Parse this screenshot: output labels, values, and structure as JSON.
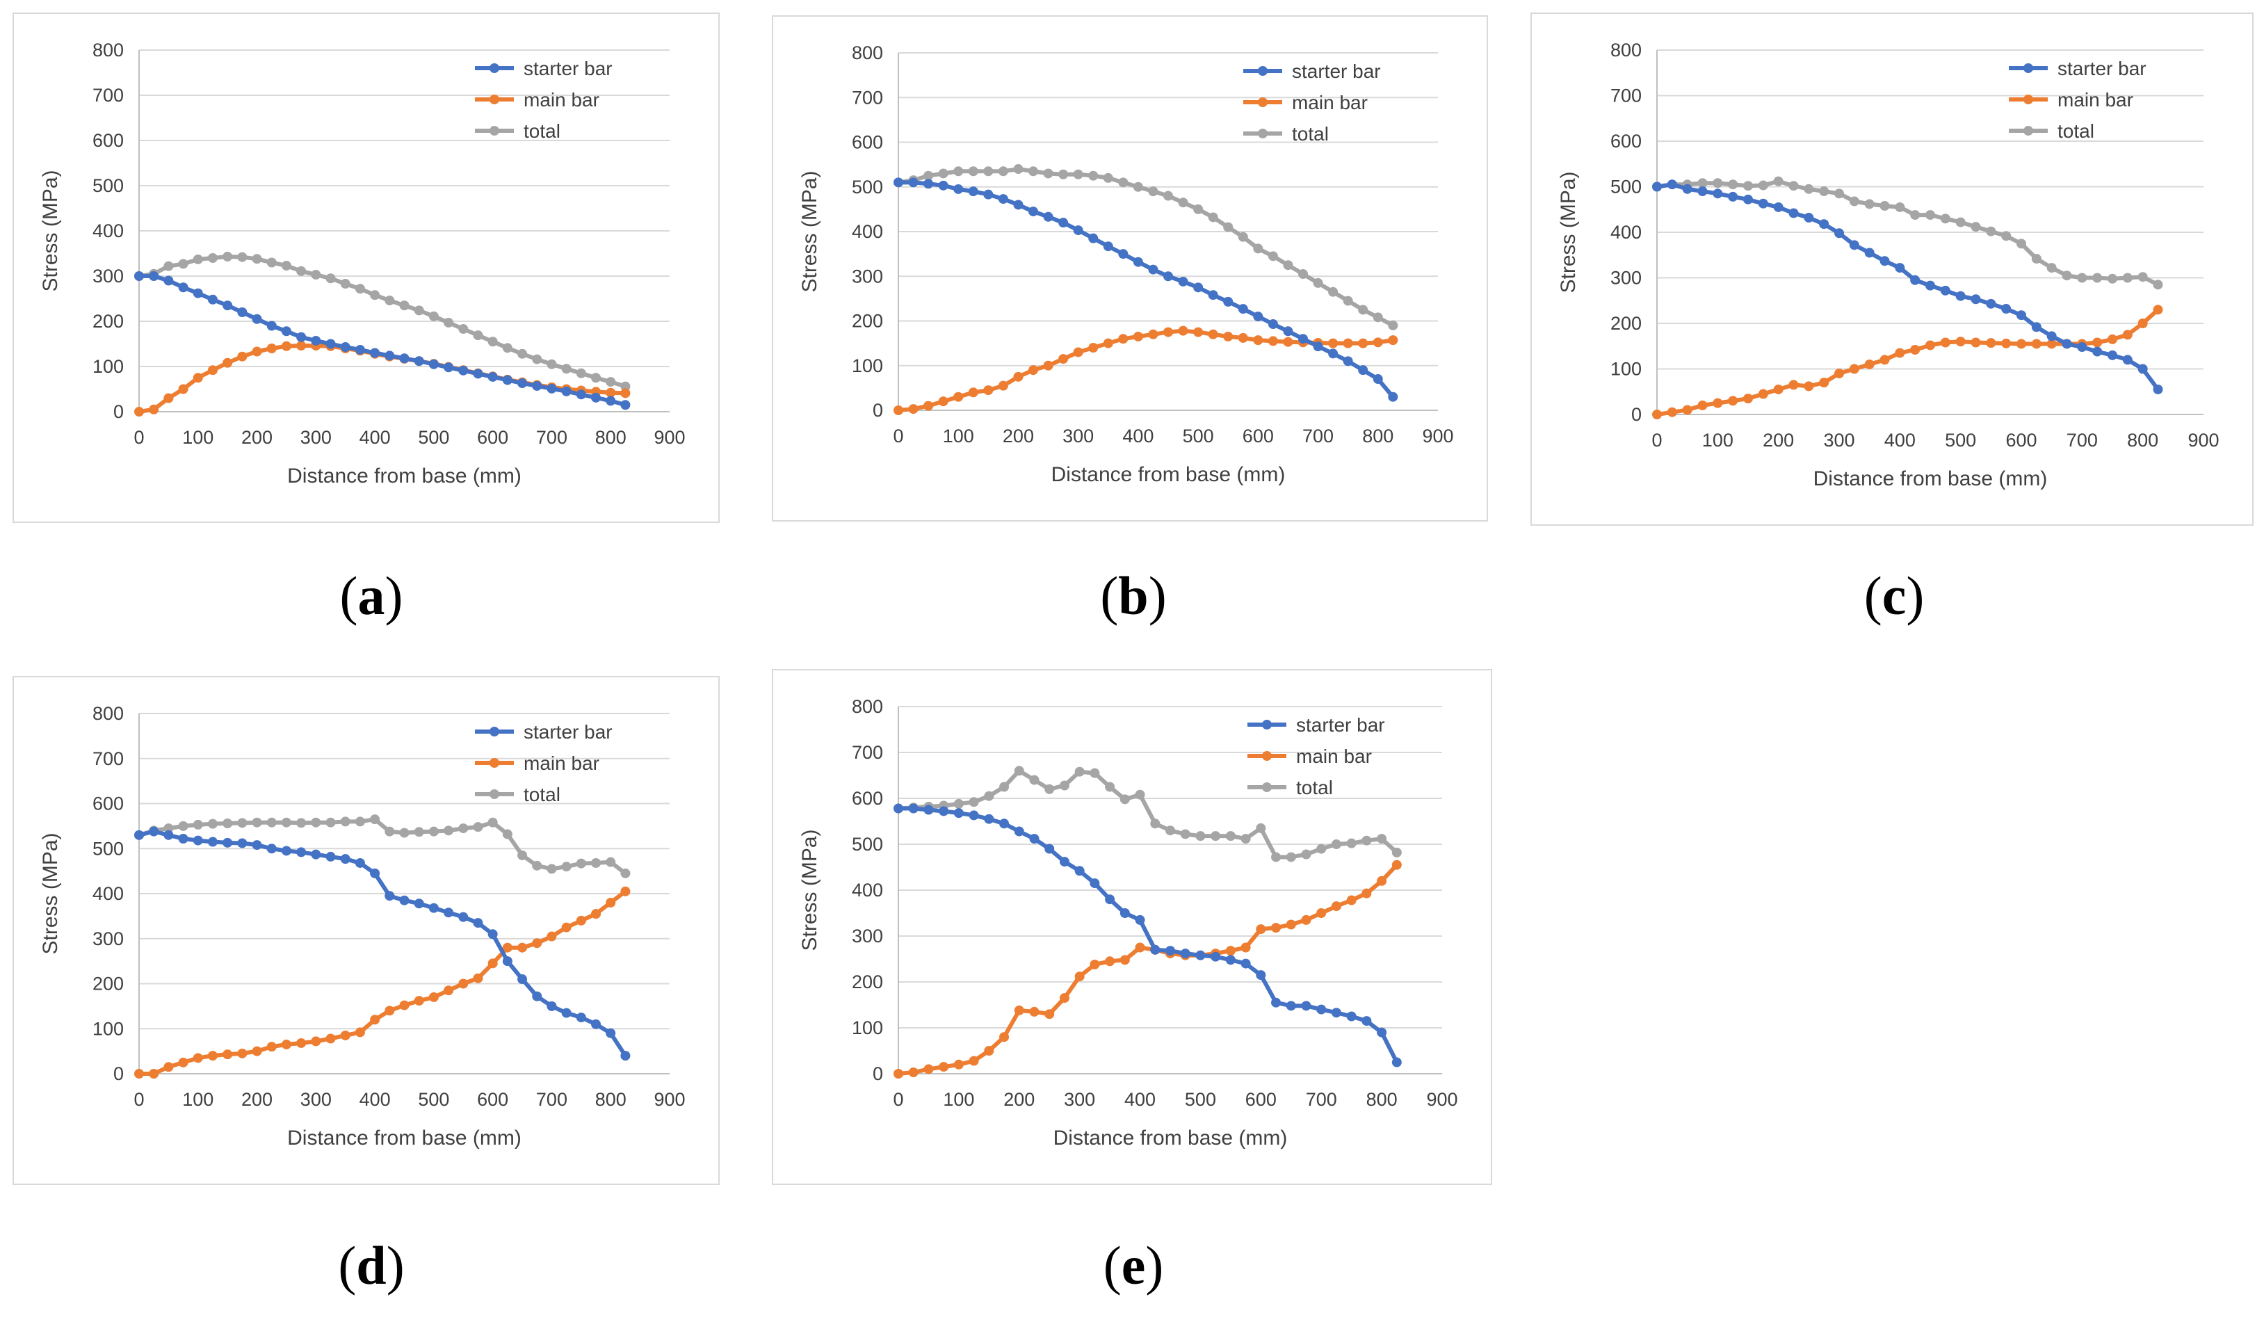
{
  "figure": {
    "captions": [
      "(a)",
      "(b)",
      "(c)",
      "(d)",
      "(e)"
    ]
  },
  "colors": {
    "starter": "#4472C4",
    "main": "#ED7D31",
    "total": "#A5A5A5",
    "grid": "#d9d9d9",
    "axis": "#bfbfbf",
    "text": "#404040"
  },
  "chart_data": [
    {
      "id": "a",
      "type": "line",
      "xlabel": "Distance from base (mm)",
      "ylabel": "Stress (MPa)",
      "xlim": [
        0,
        900
      ],
      "ylim": [
        0,
        800
      ],
      "xticks": [
        0,
        100,
        200,
        300,
        400,
        500,
        600,
        700,
        800,
        900
      ],
      "yticks": [
        0,
        100,
        200,
        300,
        400,
        500,
        600,
        700,
        800
      ],
      "legend": [
        "starter bar",
        "main bar",
        "total"
      ],
      "x": [
        0,
        25,
        50,
        75,
        100,
        125,
        150,
        175,
        200,
        225,
        250,
        275,
        300,
        325,
        350,
        375,
        400,
        425,
        450,
        475,
        500,
        525,
        550,
        575,
        600,
        625,
        650,
        675,
        700,
        725,
        750,
        775,
        800,
        825
      ],
      "series": [
        {
          "name": "starter bar",
          "values": [
            300,
            300,
            290,
            275,
            262,
            248,
            235,
            220,
            205,
            190,
            178,
            165,
            157,
            150,
            143,
            137,
            130,
            124,
            118,
            112,
            105,
            98,
            91,
            84,
            77,
            70,
            63,
            57,
            51,
            45,
            38,
            31,
            24,
            15
          ]
        },
        {
          "name": "main bar",
          "values": [
            0,
            5,
            30,
            50,
            75,
            92,
            108,
            122,
            133,
            140,
            145,
            146,
            146,
            145,
            140,
            135,
            128,
            122,
            117,
            112,
            106,
            99,
            92,
            85,
            78,
            71,
            65,
            59,
            54,
            50,
            47,
            44,
            42,
            41
          ]
        },
        {
          "name": "total",
          "values": [
            300,
            305,
            322,
            327,
            337,
            340,
            343,
            342,
            338,
            330,
            323,
            311,
            303,
            295,
            283,
            272,
            258,
            246,
            235,
            224,
            211,
            197,
            183,
            169,
            155,
            141,
            128,
            116,
            105,
            95,
            85,
            75,
            66,
            56
          ]
        }
      ]
    },
    {
      "id": "b",
      "type": "line",
      "xlabel": "Distance from base (mm)",
      "ylabel": "Stress (MPa)",
      "xlim": [
        0,
        900
      ],
      "ylim": [
        0,
        800
      ],
      "xticks": [
        0,
        100,
        200,
        300,
        400,
        500,
        600,
        700,
        800,
        900
      ],
      "yticks": [
        0,
        100,
        200,
        300,
        400,
        500,
        600,
        700,
        800
      ],
      "legend": [
        "starter bar",
        "main bar",
        "total"
      ],
      "x": [
        0,
        25,
        50,
        75,
        100,
        125,
        150,
        175,
        200,
        225,
        250,
        275,
        300,
        325,
        350,
        375,
        400,
        425,
        450,
        475,
        500,
        525,
        550,
        575,
        600,
        625,
        650,
        675,
        700,
        725,
        750,
        775,
        800,
        825
      ],
      "series": [
        {
          "name": "starter bar",
          "values": [
            510,
            510,
            507,
            503,
            495,
            490,
            483,
            473,
            460,
            445,
            433,
            420,
            403,
            385,
            367,
            350,
            332,
            315,
            300,
            288,
            275,
            258,
            243,
            227,
            210,
            193,
            177,
            160,
            143,
            127,
            110,
            90,
            70,
            30
          ]
        },
        {
          "name": "main bar",
          "values": [
            0,
            3,
            10,
            20,
            30,
            40,
            45,
            55,
            75,
            90,
            100,
            115,
            130,
            140,
            150,
            160,
            165,
            170,
            175,
            178,
            175,
            170,
            165,
            162,
            157,
            155,
            153,
            152,
            151,
            150,
            150,
            150,
            152,
            157
          ]
        },
        {
          "name": "total",
          "values": [
            510,
            515,
            525,
            530,
            535,
            535,
            535,
            535,
            540,
            535,
            530,
            528,
            528,
            525,
            520,
            510,
            500,
            490,
            480,
            465,
            450,
            432,
            410,
            388,
            362,
            345,
            325,
            305,
            285,
            265,
            245,
            225,
            208,
            190
          ]
        }
      ]
    },
    {
      "id": "c",
      "type": "line",
      "xlabel": "Distance from base (mm)",
      "ylabel": "Stress (MPa)",
      "xlim": [
        0,
        900
      ],
      "ylim": [
        0,
        800
      ],
      "xticks": [
        0,
        100,
        200,
        300,
        400,
        500,
        600,
        700,
        800,
        900
      ],
      "yticks": [
        0,
        100,
        200,
        300,
        400,
        500,
        600,
        700,
        800
      ],
      "legend": [
        "starter bar",
        "main bar",
        "total"
      ],
      "x": [
        0,
        25,
        50,
        75,
        100,
        125,
        150,
        175,
        200,
        225,
        250,
        275,
        300,
        325,
        350,
        375,
        400,
        425,
        450,
        475,
        500,
        525,
        550,
        575,
        600,
        625,
        650,
        675,
        700,
        725,
        750,
        775,
        800,
        825
      ],
      "series": [
        {
          "name": "starter bar",
          "values": [
            500,
            505,
            495,
            490,
            485,
            478,
            472,
            463,
            455,
            442,
            432,
            418,
            398,
            372,
            355,
            337,
            322,
            295,
            283,
            272,
            260,
            253,
            243,
            232,
            218,
            192,
            172,
            155,
            148,
            138,
            130,
            120,
            100,
            55
          ]
        },
        {
          "name": "main bar",
          "values": [
            0,
            5,
            10,
            20,
            25,
            30,
            35,
            45,
            55,
            65,
            62,
            70,
            90,
            100,
            110,
            120,
            135,
            142,
            152,
            158,
            160,
            158,
            157,
            156,
            155,
            155,
            155,
            155,
            155,
            158,
            165,
            175,
            200,
            230
          ]
        },
        {
          "name": "total",
          "values": [
            500,
            505,
            505,
            508,
            508,
            505,
            502,
            503,
            512,
            502,
            495,
            490,
            485,
            468,
            462,
            458,
            455,
            438,
            438,
            430,
            422,
            412,
            402,
            392,
            375,
            342,
            322,
            305,
            300,
            300,
            298,
            300,
            302,
            285
          ]
        }
      ]
    },
    {
      "id": "d",
      "type": "line",
      "xlabel": "Distance from base (mm)",
      "ylabel": "Stress (MPa)",
      "xlim": [
        0,
        900
      ],
      "ylim": [
        0,
        800
      ],
      "xticks": [
        0,
        100,
        200,
        300,
        400,
        500,
        600,
        700,
        800,
        900
      ],
      "yticks": [
        0,
        100,
        200,
        300,
        400,
        500,
        600,
        700,
        800
      ],
      "legend": [
        "starter bar",
        "main bar",
        "total"
      ],
      "x": [
        0,
        25,
        50,
        75,
        100,
        125,
        150,
        175,
        200,
        225,
        250,
        275,
        300,
        325,
        350,
        375,
        400,
        425,
        450,
        475,
        500,
        525,
        550,
        575,
        600,
        625,
        650,
        675,
        700,
        725,
        750,
        775,
        800,
        825
      ],
      "series": [
        {
          "name": "starter bar",
          "values": [
            530,
            538,
            530,
            522,
            518,
            515,
            513,
            512,
            508,
            500,
            495,
            492,
            487,
            482,
            477,
            468,
            445,
            395,
            385,
            378,
            368,
            358,
            348,
            335,
            310,
            250,
            210,
            172,
            150,
            135,
            125,
            110,
            90,
            40
          ]
        },
        {
          "name": "main bar",
          "values": [
            0,
            0,
            15,
            25,
            35,
            40,
            43,
            45,
            50,
            60,
            65,
            68,
            72,
            78,
            85,
            92,
            120,
            140,
            152,
            162,
            170,
            185,
            200,
            212,
            245,
            280,
            280,
            290,
            305,
            325,
            340,
            355,
            380,
            405
          ]
        },
        {
          "name": "total",
          "values": [
            530,
            540,
            545,
            550,
            553,
            555,
            556,
            557,
            558,
            558,
            558,
            557,
            558,
            558,
            560,
            560,
            565,
            538,
            535,
            537,
            538,
            540,
            545,
            548,
            558,
            532,
            485,
            462,
            455,
            460,
            467,
            468,
            470,
            445
          ]
        }
      ]
    },
    {
      "id": "e",
      "type": "line",
      "xlabel": "Distance from base (mm)",
      "ylabel": "Stress (MPa)",
      "xlim": [
        0,
        900
      ],
      "ylim": [
        0,
        800
      ],
      "xticks": [
        0,
        100,
        200,
        300,
        400,
        500,
        600,
        700,
        800,
        900
      ],
      "yticks": [
        0,
        100,
        200,
        300,
        400,
        500,
        600,
        700,
        800
      ],
      "legend": [
        "starter bar",
        "main bar",
        "total"
      ],
      "x": [
        0,
        25,
        50,
        75,
        100,
        125,
        150,
        175,
        200,
        225,
        250,
        275,
        300,
        325,
        350,
        375,
        400,
        425,
        450,
        475,
        500,
        525,
        550,
        575,
        600,
        625,
        650,
        675,
        700,
        725,
        750,
        775,
        800,
        825
      ],
      "series": [
        {
          "name": "starter bar",
          "values": [
            578,
            578,
            575,
            572,
            568,
            563,
            555,
            545,
            528,
            512,
            490,
            462,
            442,
            415,
            380,
            350,
            335,
            270,
            268,
            262,
            258,
            255,
            248,
            240,
            215,
            155,
            148,
            148,
            140,
            133,
            125,
            115,
            90,
            25
          ]
        },
        {
          "name": "main bar",
          "values": [
            0,
            3,
            10,
            15,
            20,
            28,
            50,
            80,
            138,
            135,
            130,
            165,
            212,
            238,
            245,
            248,
            275,
            270,
            262,
            258,
            258,
            262,
            268,
            275,
            315,
            318,
            325,
            335,
            350,
            365,
            378,
            393,
            420,
            455
          ]
        },
        {
          "name": "total",
          "values": [
            578,
            580,
            582,
            584,
            588,
            592,
            605,
            625,
            660,
            640,
            620,
            628,
            658,
            655,
            625,
            598,
            608,
            545,
            530,
            522,
            518,
            518,
            518,
            512,
            535,
            472,
            472,
            478,
            490,
            500,
            502,
            508,
            512,
            482
          ]
        }
      ]
    }
  ]
}
